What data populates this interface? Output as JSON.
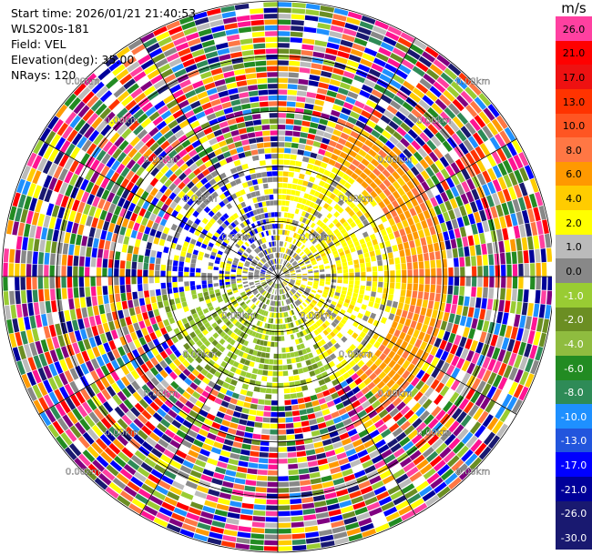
{
  "info": {
    "start_time": "Start time: 2026/01/21 21:40:53",
    "station": "WLS200s-181",
    "field": "Field: VEL",
    "elevation": "Elevation(deg): 35.00",
    "nrays": "NRays: 120"
  },
  "chart_data": {
    "type": "heatmap",
    "projection": "polar-ppi",
    "range_rings_km": [
      1.0,
      2.0,
      3.0,
      4.0,
      5.0
    ],
    "ring_label_text": "0.00km",
    "colorbar": {
      "unit": "m/s",
      "ticks": [
        "26.0",
        "21.0",
        "17.0",
        "13.0",
        "10.0",
        "8.0",
        "6.0",
        "4.0",
        "2.0",
        "1.0",
        "0.0",
        "-1.0",
        "-2.0",
        "-4.0",
        "-6.0",
        "-8.0",
        "-10.0",
        "-13.0",
        "-17.0",
        "-21.0",
        "-26.0",
        "-30.0"
      ],
      "colors": [
        "#ff40a0",
        "#ff0000",
        "#ee1111",
        "#ff3300",
        "#ff5522",
        "#ff7744",
        "#ff9900",
        "#ffcc00",
        "#ffff00",
        "#bbbbbb",
        "#888888",
        "#99cc33",
        "#6b8e23",
        "#8fbc3f",
        "#228b22",
        "#2e8b57",
        "#1e90ff",
        "#2255dd",
        "#0000ff",
        "#000099",
        "#191970",
        "#191970"
      ]
    }
  }
}
